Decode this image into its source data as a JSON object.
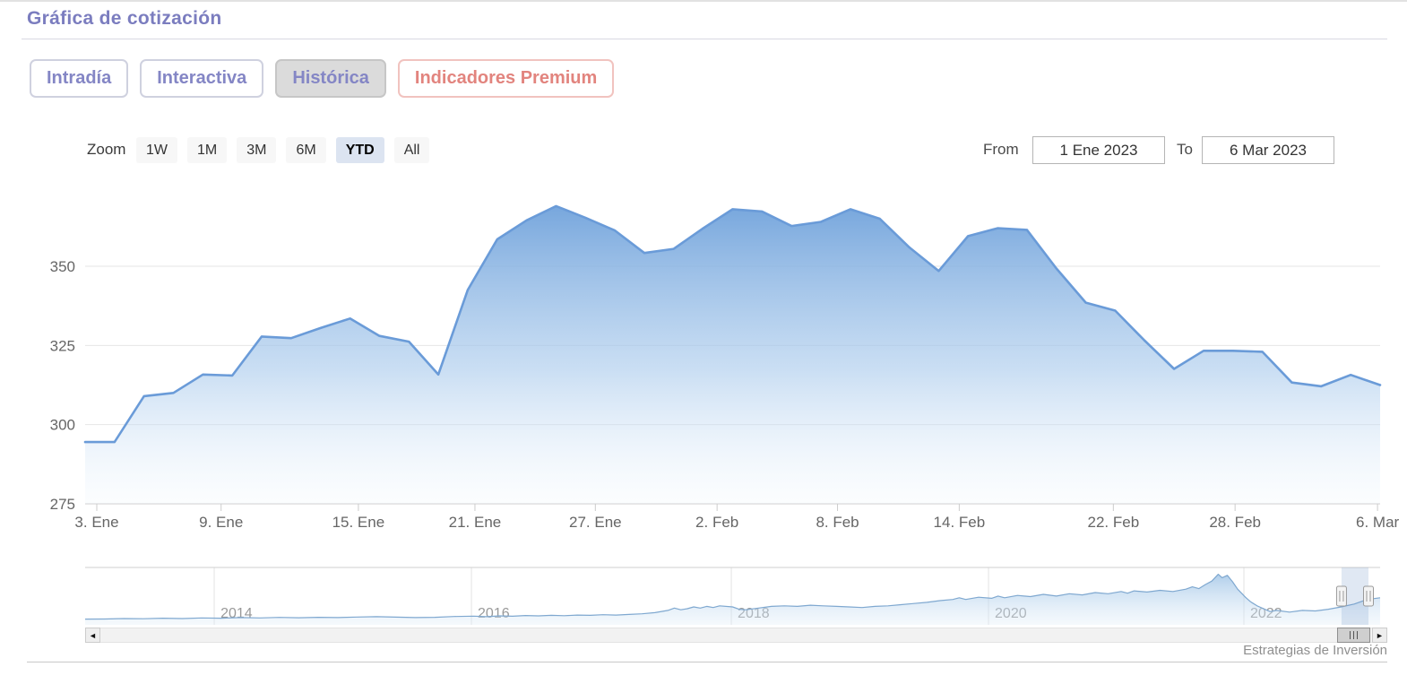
{
  "page": {
    "title": "Gráfica de cotización",
    "credit": "Estrategias de Inversión"
  },
  "tabs": [
    {
      "label": "Intradía",
      "variant": "default",
      "active": false
    },
    {
      "label": "Interactiva",
      "variant": "default",
      "active": false
    },
    {
      "label": "Histórica",
      "variant": "active-gray",
      "active": true
    },
    {
      "label": "Indicadores Premium",
      "variant": "premium",
      "active": false
    }
  ],
  "range_selector": {
    "zoom_label": "Zoom",
    "buttons": [
      {
        "label": "1W",
        "selected": false
      },
      {
        "label": "1M",
        "selected": false
      },
      {
        "label": "3M",
        "selected": false
      },
      {
        "label": "6M",
        "selected": false
      },
      {
        "label": "YTD",
        "selected": true
      },
      {
        "label": "All",
        "selected": false
      }
    ],
    "from_label": "From",
    "from_value": "1 Ene 2023",
    "to_label": "To",
    "to_value": "6 Mar 2023"
  },
  "chart_data": [
    {
      "type": "area",
      "title": "Gráfica de cotización",
      "series_name": "Cotización",
      "categories": [
        "3 Ene",
        "4 Ene",
        "5 Ene",
        "6 Ene",
        "9 Ene",
        "10 Ene",
        "11 Ene",
        "12 Ene",
        "13 Ene",
        "16 Ene",
        "17 Ene",
        "18 Ene",
        "19 Ene",
        "20 Ene",
        "23 Ene",
        "24 Ene",
        "25 Ene",
        "26 Ene",
        "27 Ene",
        "30 Ene",
        "31 Ene",
        "1 Feb",
        "2 Feb",
        "3 Feb",
        "6 Feb",
        "7 Feb",
        "8 Feb",
        "9 Feb",
        "10 Feb",
        "13 Feb",
        "14 Feb",
        "15 Feb",
        "16 Feb",
        "17 Feb",
        "20 Feb",
        "21 Feb",
        "22 Feb",
        "23 Feb",
        "24 Feb",
        "27 Feb",
        "28 Feb",
        "1 Mar",
        "2 Mar",
        "3 Mar",
        "6 Mar"
      ],
      "values": [
        294.5,
        294.5,
        309,
        310,
        315.8,
        315.5,
        327.8,
        327.3,
        330.5,
        333.5,
        328,
        326.2,
        315.8,
        342.5,
        358.5,
        364.5,
        369,
        365.3,
        361.3,
        354.2,
        355.5,
        362,
        368,
        367.3,
        362.7,
        364,
        368,
        365,
        356,
        348.5,
        359.5,
        362,
        361.5,
        349.3,
        338.5,
        336,
        326.5,
        317.6,
        323.3,
        323.3,
        323,
        313.3,
        312.1,
        315.7,
        312.5
      ],
      "ylim": [
        275,
        376
      ],
      "yticks": [
        275,
        300,
        325,
        350
      ],
      "xlabel": "",
      "ylabel": "",
      "xticks": {
        "labels": [
          "3. Ene",
          "9. Ene",
          "15. Ene",
          "21. Ene",
          "27. Ene",
          "2. Feb",
          "8. Feb",
          "14. Feb",
          "22. Feb",
          "28. Feb",
          "6. Mar"
        ],
        "fracs": [
          0.009,
          0.105,
          0.211,
          0.301,
          0.394,
          0.488,
          0.581,
          0.675,
          0.794,
          0.888,
          0.998
        ]
      },
      "grid": "horizontal",
      "legend": "none"
    },
    {
      "type": "area",
      "role": "navigator",
      "x_range_years": [
        "2013",
        "2023"
      ],
      "year_ticks": {
        "labels": [
          "2014",
          "2016",
          "2018",
          "2020",
          "2022"
        ],
        "fracs": [
          0.0997,
          0.2983,
          0.499,
          0.6976,
          0.8948
        ]
      },
      "selected_range_frac": [
        0.9702,
        0.991
      ],
      "points_frac": [
        [
          0,
          0.1
        ],
        [
          0.015,
          0.102
        ],
        [
          0.03,
          0.11
        ],
        [
          0.045,
          0.106
        ],
        [
          0.06,
          0.115
        ],
        [
          0.075,
          0.11
        ],
        [
          0.09,
          0.12
        ],
        [
          0.105,
          0.115
        ],
        [
          0.12,
          0.126
        ],
        [
          0.135,
          0.12
        ],
        [
          0.15,
          0.13
        ],
        [
          0.165,
          0.124
        ],
        [
          0.18,
          0.132
        ],
        [
          0.195,
          0.126
        ],
        [
          0.21,
          0.136
        ],
        [
          0.225,
          0.142
        ],
        [
          0.24,
          0.134
        ],
        [
          0.255,
          0.126
        ],
        [
          0.27,
          0.132
        ],
        [
          0.285,
          0.146
        ],
        [
          0.3,
          0.152
        ],
        [
          0.31,
          0.142
        ],
        [
          0.32,
          0.156
        ],
        [
          0.33,
          0.15
        ],
        [
          0.34,
          0.162
        ],
        [
          0.35,
          0.156
        ],
        [
          0.36,
          0.166
        ],
        [
          0.37,
          0.16
        ],
        [
          0.38,
          0.17
        ],
        [
          0.39,
          0.166
        ],
        [
          0.4,
          0.176
        ],
        [
          0.41,
          0.17
        ],
        [
          0.42,
          0.182
        ],
        [
          0.43,
          0.192
        ],
        [
          0.44,
          0.212
        ],
        [
          0.45,
          0.252
        ],
        [
          0.455,
          0.292
        ],
        [
          0.46,
          0.262
        ],
        [
          0.465,
          0.282
        ],
        [
          0.47,
          0.312
        ],
        [
          0.475,
          0.292
        ],
        [
          0.48,
          0.322
        ],
        [
          0.485,
          0.302
        ],
        [
          0.49,
          0.332
        ],
        [
          0.5,
          0.312
        ],
        [
          0.505,
          0.272
        ],
        [
          0.51,
          0.262
        ],
        [
          0.52,
          0.292
        ],
        [
          0.53,
          0.322
        ],
        [
          0.54,
          0.332
        ],
        [
          0.55,
          0.322
        ],
        [
          0.56,
          0.342
        ],
        [
          0.57,
          0.332
        ],
        [
          0.58,
          0.322
        ],
        [
          0.59,
          0.312
        ],
        [
          0.6,
          0.302
        ],
        [
          0.61,
          0.322
        ],
        [
          0.62,
          0.332
        ],
        [
          0.63,
          0.352
        ],
        [
          0.64,
          0.372
        ],
        [
          0.65,
          0.392
        ],
        [
          0.66,
          0.422
        ],
        [
          0.67,
          0.442
        ],
        [
          0.675,
          0.472
        ],
        [
          0.68,
          0.442
        ],
        [
          0.69,
          0.482
        ],
        [
          0.7,
          0.462
        ],
        [
          0.705,
          0.502
        ],
        [
          0.71,
          0.472
        ],
        [
          0.72,
          0.512
        ],
        [
          0.73,
          0.492
        ],
        [
          0.74,
          0.532
        ],
        [
          0.75,
          0.502
        ],
        [
          0.76,
          0.542
        ],
        [
          0.77,
          0.522
        ],
        [
          0.78,
          0.562
        ],
        [
          0.79,
          0.542
        ],
        [
          0.8,
          0.582
        ],
        [
          0.805,
          0.552
        ],
        [
          0.81,
          0.592
        ],
        [
          0.82,
          0.572
        ],
        [
          0.83,
          0.602
        ],
        [
          0.84,
          0.582
        ],
        [
          0.85,
          0.622
        ],
        [
          0.855,
          0.662
        ],
        [
          0.86,
          0.632
        ],
        [
          0.865,
          0.702
        ],
        [
          0.87,
          0.762
        ],
        [
          0.875,
          0.882
        ],
        [
          0.878,
          0.822
        ],
        [
          0.882,
          0.862
        ],
        [
          0.886,
          0.752
        ],
        [
          0.89,
          0.622
        ],
        [
          0.893,
          0.552
        ],
        [
          0.896,
          0.482
        ],
        [
          0.9,
          0.402
        ],
        [
          0.905,
          0.332
        ],
        [
          0.91,
          0.282
        ],
        [
          0.915,
          0.232
        ],
        [
          0.92,
          0.252
        ],
        [
          0.93,
          0.222
        ],
        [
          0.94,
          0.252
        ],
        [
          0.95,
          0.242
        ],
        [
          0.96,
          0.272
        ],
        [
          0.97,
          0.312
        ],
        [
          0.98,
          0.362
        ],
        [
          0.99,
          0.442
        ],
        [
          1,
          0.472
        ]
      ]
    }
  ],
  "scrollbar": {
    "left_arrow_icon": "◄",
    "right_arrow_icon": "►",
    "thumb_grip_icon": "triple-bar"
  },
  "colors": {
    "title_purple": "#7b7dbf",
    "tab_purple": "#8486c5",
    "premium_salmon": "#e2847e",
    "series_line": "#6a9bd8",
    "area_top": "rgba(112,162,219,0.95)",
    "area_mid": "rgba(169,202,236,0.62)",
    "area_bottom": "rgba(235,244,252,0.18)",
    "gridline": "#e6e6e6",
    "axis_line": "#cccccc",
    "axis_label": "#666666",
    "year_label": "#999999",
    "navigator_mask": "rgba(116,149,200,0.22)",
    "selected_zoom_bg": "#dce4f1"
  }
}
